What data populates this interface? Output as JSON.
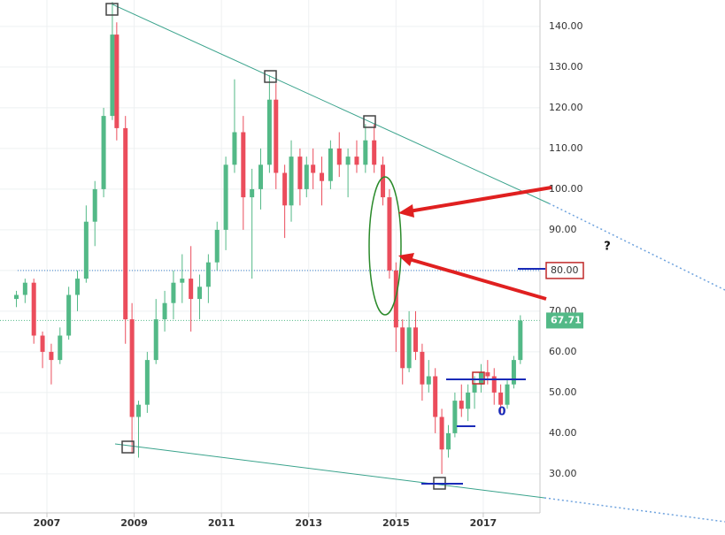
{
  "chart_data": {
    "type": "candlestick",
    "x": [
      2006.3,
      2006.5,
      2006.7,
      2006.9,
      2007.1,
      2007.3,
      2007.5,
      2007.7,
      2007.9,
      2008.1,
      2008.3,
      2008.5,
      2008.6,
      2008.8,
      2008.95,
      2009.1,
      2009.3,
      2009.5,
      2009.7,
      2009.9,
      2010.1,
      2010.3,
      2010.5,
      2010.7,
      2010.9,
      2011.1,
      2011.3,
      2011.5,
      2011.7,
      2011.9,
      2012.1,
      2012.25,
      2012.45,
      2012.6,
      2012.8,
      2012.95,
      2013.1,
      2013.3,
      2013.5,
      2013.7,
      2013.9,
      2014.1,
      2014.3,
      2014.5,
      2014.7,
      2014.85,
      2015.0,
      2015.15,
      2015.3,
      2015.45,
      2015.6,
      2015.75,
      2015.9,
      2016.05,
      2016.2,
      2016.35,
      2016.5,
      2016.65,
      2016.8,
      2016.95,
      2017.1,
      2017.25,
      2017.4,
      2017.55,
      2017.7,
      2017.85
    ],
    "open": [
      73,
      74,
      77,
      64,
      60,
      58,
      64,
      74,
      78,
      92,
      100,
      118,
      138,
      115,
      68,
      44,
      47,
      58,
      68,
      72,
      77,
      78,
      73,
      76,
      82,
      90,
      106,
      114,
      98,
      100,
      106,
      122,
      104,
      96,
      108,
      100,
      106,
      104,
      102,
      110,
      106,
      108,
      106,
      112,
      106,
      98,
      80,
      66,
      56,
      66,
      60,
      52,
      54,
      44,
      36,
      40,
      48,
      46,
      50,
      52,
      55,
      54,
      50,
      47,
      52,
      58
    ],
    "high": [
      75,
      78,
      78,
      65,
      62,
      66,
      76,
      80,
      96,
      102,
      120,
      146,
      141,
      118,
      72,
      48,
      60,
      73,
      75,
      80,
      84,
      86,
      79,
      84,
      92,
      108,
      127,
      118,
      105,
      110,
      128,
      126,
      106,
      112,
      110,
      108,
      110,
      108,
      112,
      114,
      110,
      112,
      116,
      116,
      108,
      100,
      82,
      68,
      70,
      70,
      62,
      58,
      56,
      46,
      42,
      50,
      52,
      52,
      54,
      57,
      58,
      56,
      52,
      53,
      59,
      69
    ],
    "low": [
      71,
      72,
      62,
      56,
      52,
      57,
      63,
      70,
      77,
      86,
      98,
      117,
      112,
      62,
      35,
      34,
      45,
      57,
      65,
      68,
      72,
      65,
      68,
      72,
      80,
      85,
      104,
      90,
      78,
      95,
      104,
      100,
      88,
      92,
      96,
      98,
      100,
      96,
      100,
      103,
      98,
      104,
      104,
      104,
      96,
      78,
      60,
      52,
      55,
      58,
      48,
      50,
      40,
      30,
      34,
      39,
      44,
      43,
      46,
      50,
      52,
      47,
      45,
      46,
      51,
      57
    ],
    "close": [
      74,
      77,
      64,
      60,
      58,
      64,
      74,
      78,
      92,
      100,
      118,
      138,
      115,
      68,
      44,
      47,
      58,
      68,
      72,
      77,
      78,
      73,
      76,
      82,
      90,
      106,
      114,
      98,
      100,
      106,
      122,
      104,
      96,
      108,
      100,
      106,
      104,
      102,
      110,
      106,
      108,
      106,
      112,
      106,
      98,
      80,
      66,
      56,
      66,
      60,
      52,
      54,
      44,
      36,
      40,
      48,
      46,
      50,
      52,
      55,
      54,
      50,
      47,
      52,
      58,
      67.71
    ],
    "up_color": "#53b987",
    "down_color": "#eb4d5c",
    "xlim": [
      2005.925,
      2018.3
    ],
    "ylim": [
      21.5,
      146.5
    ],
    "xticks": [
      2007,
      2009,
      2011,
      2013,
      2015,
      2017
    ],
    "yticks": [
      {
        "value": 30,
        "label": "30.00"
      },
      {
        "value": 40,
        "label": "40.00"
      },
      {
        "value": 50,
        "label": "50.00"
      },
      {
        "value": 60,
        "label": "60.00"
      },
      {
        "value": 70,
        "label": "70.00"
      },
      {
        "value": 80,
        "label": "80.00"
      },
      {
        "value": 90,
        "label": "90.00"
      },
      {
        "value": 100,
        "label": "100.00"
      },
      {
        "value": 110,
        "label": "110.00"
      },
      {
        "value": 120,
        "label": "120.00"
      },
      {
        "value": 130,
        "label": "130.00"
      },
      {
        "value": 140,
        "label": "140.00"
      }
    ],
    "grid": true,
    "level": {
      "value": 80,
      "label": "80.00"
    },
    "last_price": {
      "value": 67.71,
      "label": "67.71"
    },
    "annotation_texts": [
      "?",
      "0"
    ]
  }
}
